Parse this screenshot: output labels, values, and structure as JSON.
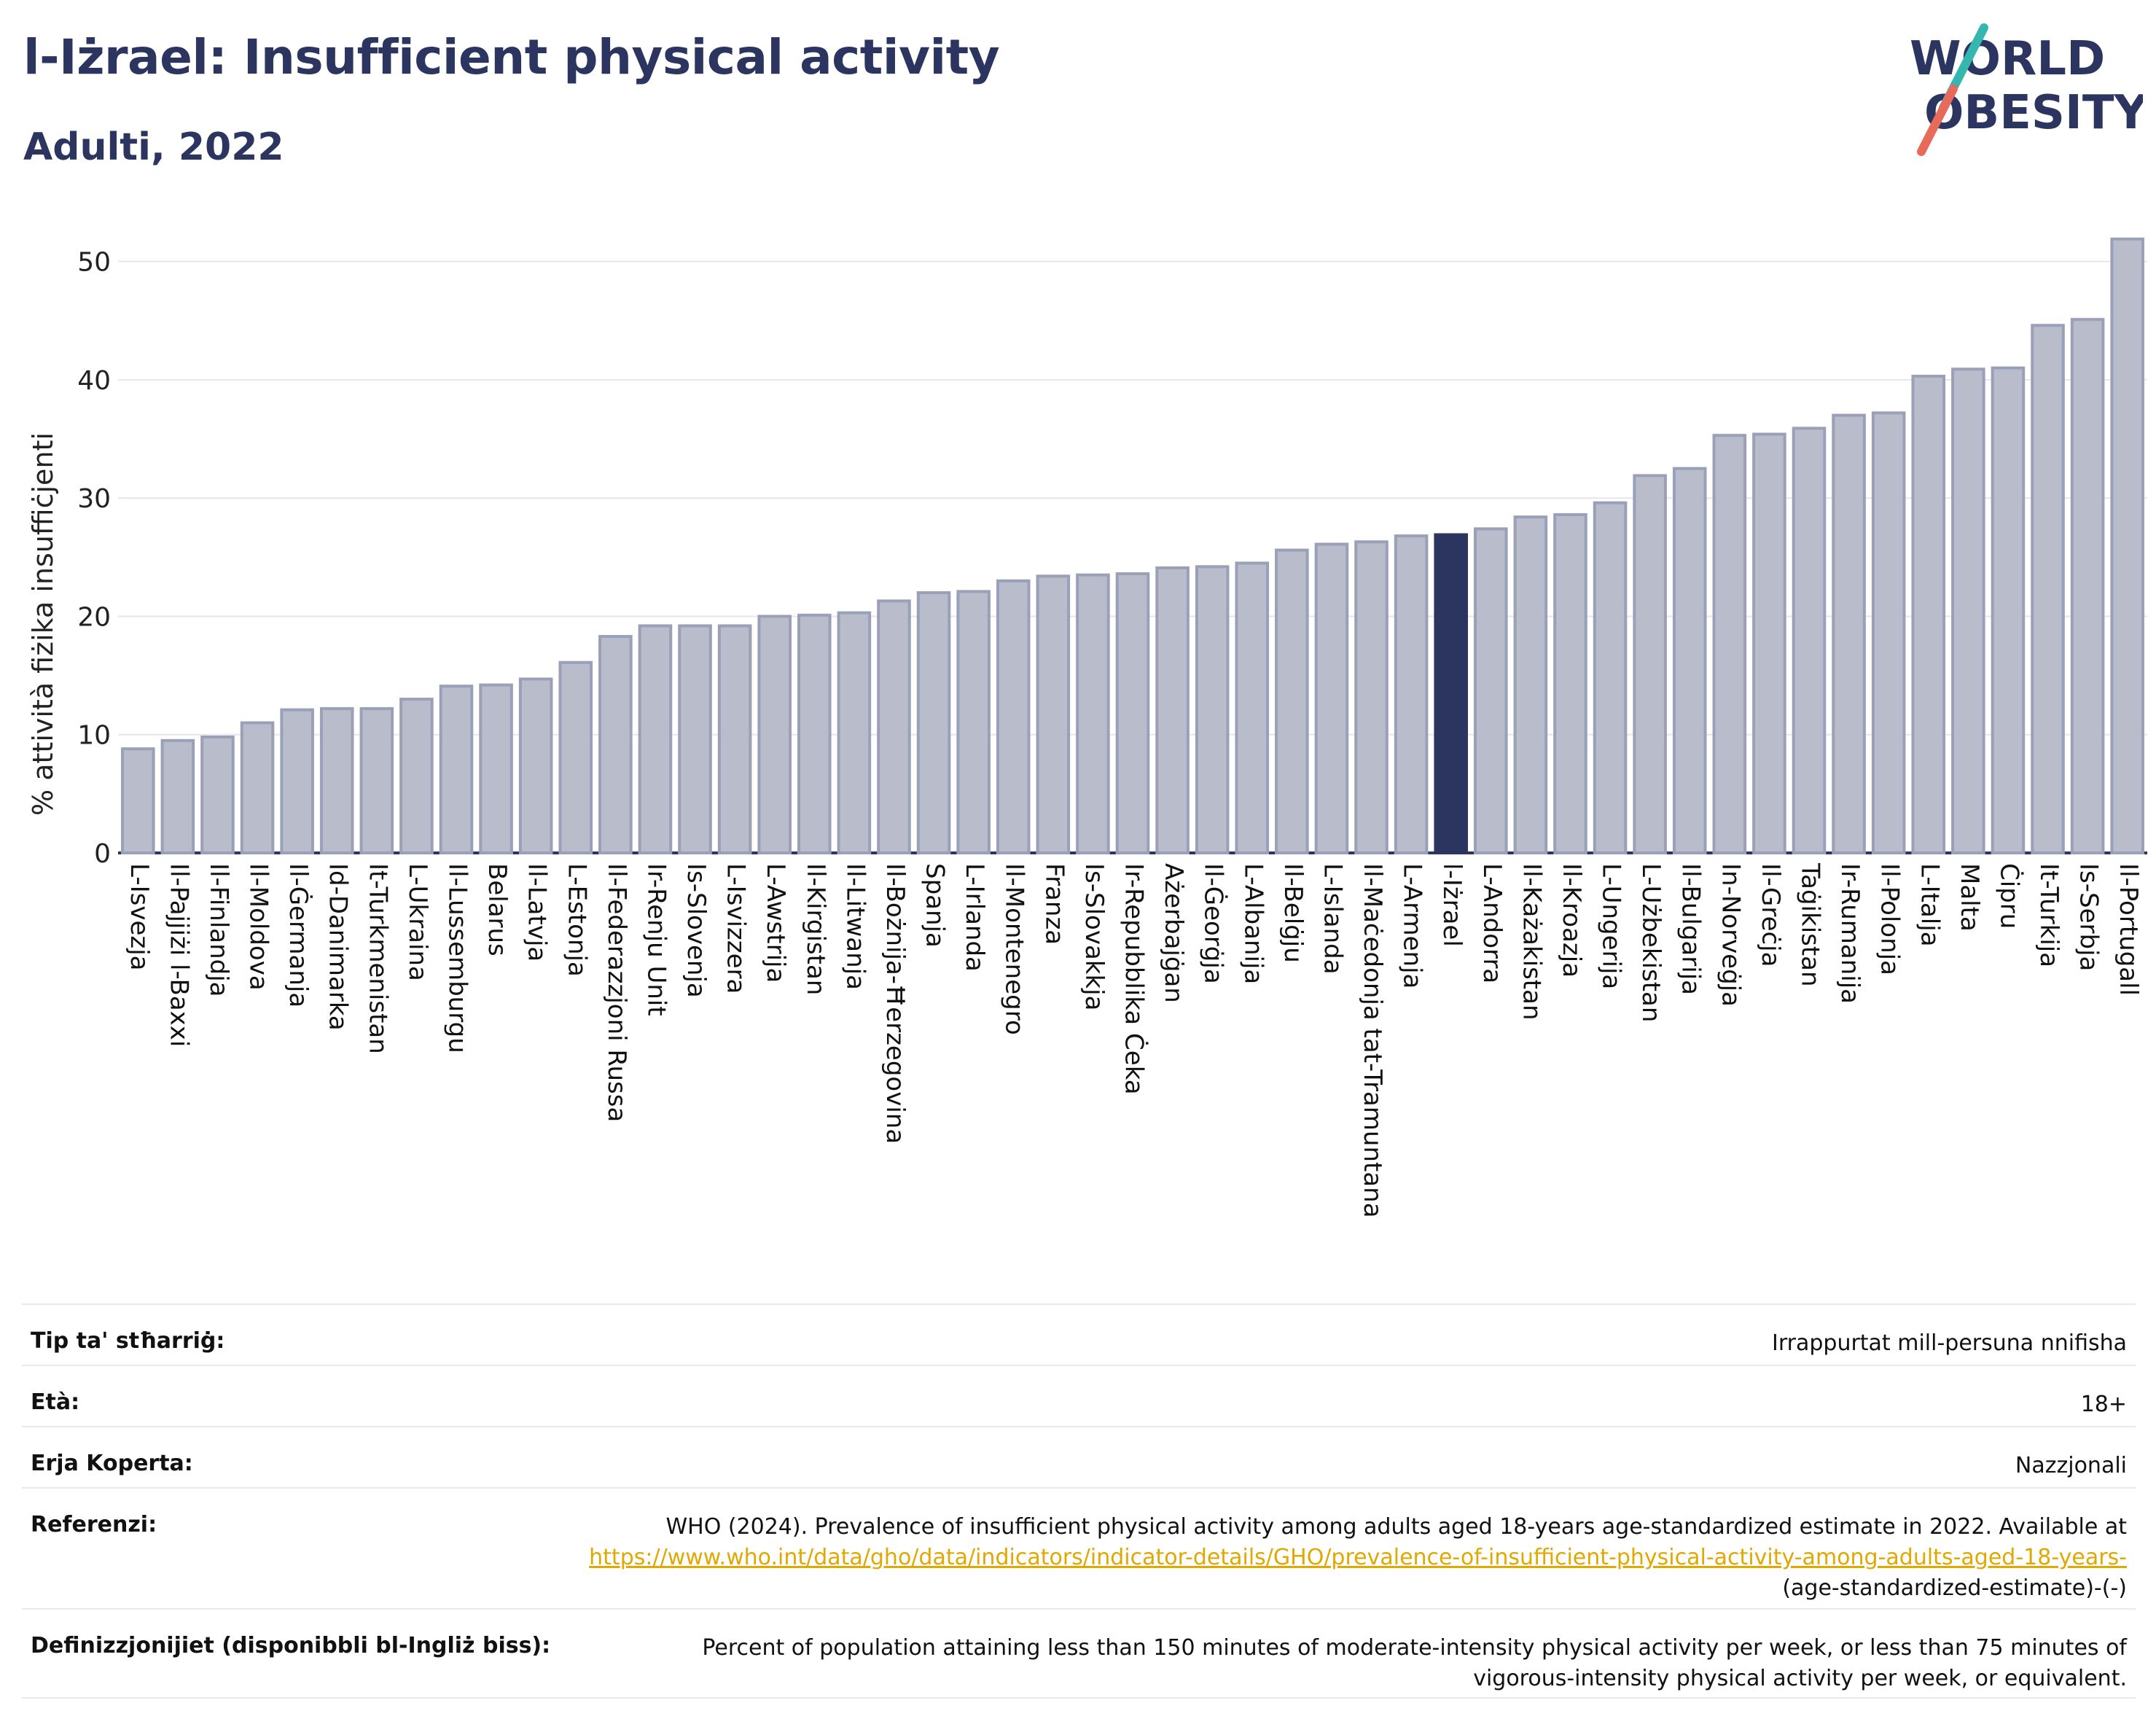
{
  "header": {
    "title": "l-Iżrael: Insufficient physical activity",
    "subtitle": "Adulti, 2022"
  },
  "logo": {
    "line1": "WORLD",
    "line2": "OBESITY"
  },
  "colors": {
    "bar": "#b8bccb",
    "bar_edge": "#9aa0b8",
    "highlight": "#2b3560",
    "text": "#2b3560",
    "grid": "#e6e6ec"
  },
  "chart_data": {
    "type": "bar",
    "ylabel": "% attività fiżika insuffiċjenti",
    "ylim": [
      0,
      53
    ],
    "yticks": [
      0,
      10,
      20,
      30,
      40,
      50
    ],
    "grid": true,
    "highlight": "l-Iżrael",
    "categories": [
      "L-Isvezja",
      "Il-Pajjiżi l-Baxxi",
      "Il-Finlandja",
      "Il-Moldova",
      "Il-Ġermanja",
      "Id-Danimarka",
      "It-Turkmenistan",
      "L-Ukraina",
      "Il-Lussemburgu",
      "Belarus",
      "Il-Latvja",
      "L-Estonja",
      "Il-Federazzjoni Russa",
      "Ir-Renju Unit",
      "Is-Slovenja",
      "L-Isvizzera",
      "L-Awstrija",
      "Il-Kirgistan",
      "Il-Litwanja",
      "Il-Bożnija-Ħerzegovina",
      "Spanja",
      "L-Irlanda",
      "Il-Montenegro",
      "Franza",
      "Is-Slovakkja",
      "Ir-Repubblika Ċeka",
      "Ażerbajġan",
      "Il-Ġeorġja",
      "L-Albanija",
      "Il-Belġju",
      "L-Islanda",
      "Il-Maċedonja tat-Tramuntana",
      "L-Armenja",
      "l-Iżrael",
      "L-Andorra",
      "Il-Każakistan",
      "Il-Kroazja",
      "L-Ungerija",
      "L-Użbekistan",
      "Il-Bulgarija",
      "In-Norveġja",
      "Il-Greċja",
      "Taġikistan",
      "Ir-Rumanija",
      "Il-Polonja",
      "L-Italja",
      "Malta",
      "Ċipru",
      "It-Turkija",
      "Is-Serbja",
      "Il-Portugall"
    ],
    "values": [
      8.8,
      9.5,
      9.8,
      11.0,
      12.1,
      12.2,
      12.2,
      13.0,
      14.1,
      14.2,
      14.7,
      16.1,
      18.3,
      19.2,
      19.2,
      19.2,
      20.0,
      20.1,
      20.3,
      21.3,
      22.0,
      22.1,
      23.0,
      23.4,
      23.5,
      23.6,
      24.1,
      24.2,
      24.5,
      25.6,
      26.1,
      26.3,
      26.8,
      26.9,
      27.4,
      28.4,
      28.6,
      29.6,
      31.9,
      32.5,
      35.3,
      35.4,
      35.9,
      37.0,
      37.2,
      40.3,
      40.9,
      41.0,
      44.6,
      45.1,
      51.9
    ]
  },
  "info": {
    "rows": [
      {
        "label": "Tip ta' stħarriġ:",
        "value": "Irrappurtat mill-persuna nnifisha"
      },
      {
        "label": "Età:",
        "value": "18+"
      },
      {
        "label": "Erja Koperta:",
        "value": "Nazzjonali"
      }
    ],
    "references": {
      "label": "Referenzi:",
      "text": "WHO (2024). Prevalence of insufficient physical activity among adults aged 18-years age-standardized estimate in 2022. Available at",
      "link": "https://www.who.int/data/gho/data/indicators/indicator-details/GHO/prevalence-of-insufficient-physical-activity-among-adults-aged-18-years-",
      "suffix": "(age-standardized-estimate)-(-)"
    },
    "definitions": {
      "label": "Definizzjonijiet (disponibbli bl-Ingliż biss):",
      "text": "Percent of population attaining less than 150 minutes of moderate-intensity physical activity per week, or less than 75 minutes of vigorous-intensity physical activity per week, or equivalent."
    }
  }
}
